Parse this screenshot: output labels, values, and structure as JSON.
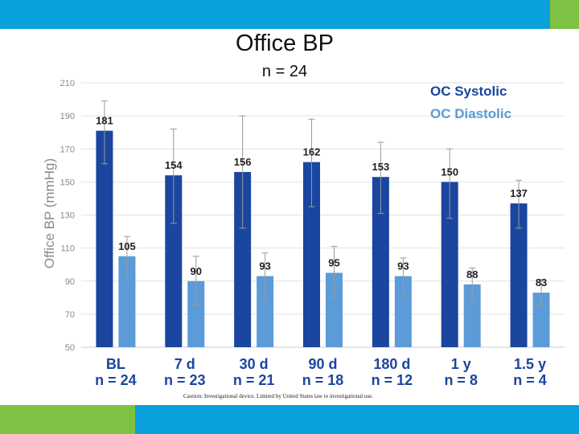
{
  "slide": {
    "title": "Office BP",
    "subtitle": "n = 24",
    "footnote": "Caution: Investigational device. Limited by United States law to investigational use.",
    "colors": {
      "top_bar": "#0aa0dc",
      "accent_green": "#7dc242",
      "systolic": "#1a46a0",
      "diastolic": "#5b9bd8"
    }
  },
  "chart_data": {
    "type": "bar",
    "ylabel": "Office BP (mmHg)",
    "ylim": [
      50,
      210
    ],
    "yticks": [
      50,
      70,
      90,
      110,
      130,
      150,
      170,
      190,
      210
    ],
    "grid": true,
    "legend_position": "top-right",
    "categories": [
      {
        "line1": "BL",
        "line2": "n = 24"
      },
      {
        "line1": "7 d",
        "line2": "n = 23"
      },
      {
        "line1": "30 d",
        "line2": "n = 21"
      },
      {
        "line1": "90 d",
        "line2": "n = 18"
      },
      {
        "line1": "180 d",
        "line2": "n = 12"
      },
      {
        "line1": "1 y",
        "line2": "n = 8"
      },
      {
        "line1": "1.5 y",
        "line2": "n = 4"
      }
    ],
    "series": [
      {
        "name": "OC Systolic",
        "color": "#1a46a0",
        "values": [
          181,
          154,
          156,
          162,
          153,
          150,
          137
        ],
        "error_high": [
          199,
          182,
          190,
          188,
          174,
          170,
          151
        ],
        "error_low": [
          161,
          125,
          122,
          135,
          131,
          128,
          122
        ]
      },
      {
        "name": "OC Diastolic",
        "color": "#5b9bd8",
        "values": [
          105,
          90,
          93,
          95,
          93,
          88,
          83
        ],
        "error_high": [
          117,
          105,
          107,
          111,
          104,
          98,
          91
        ],
        "error_low": [
          92,
          76,
          78,
          80,
          82,
          78,
          76
        ]
      }
    ]
  }
}
